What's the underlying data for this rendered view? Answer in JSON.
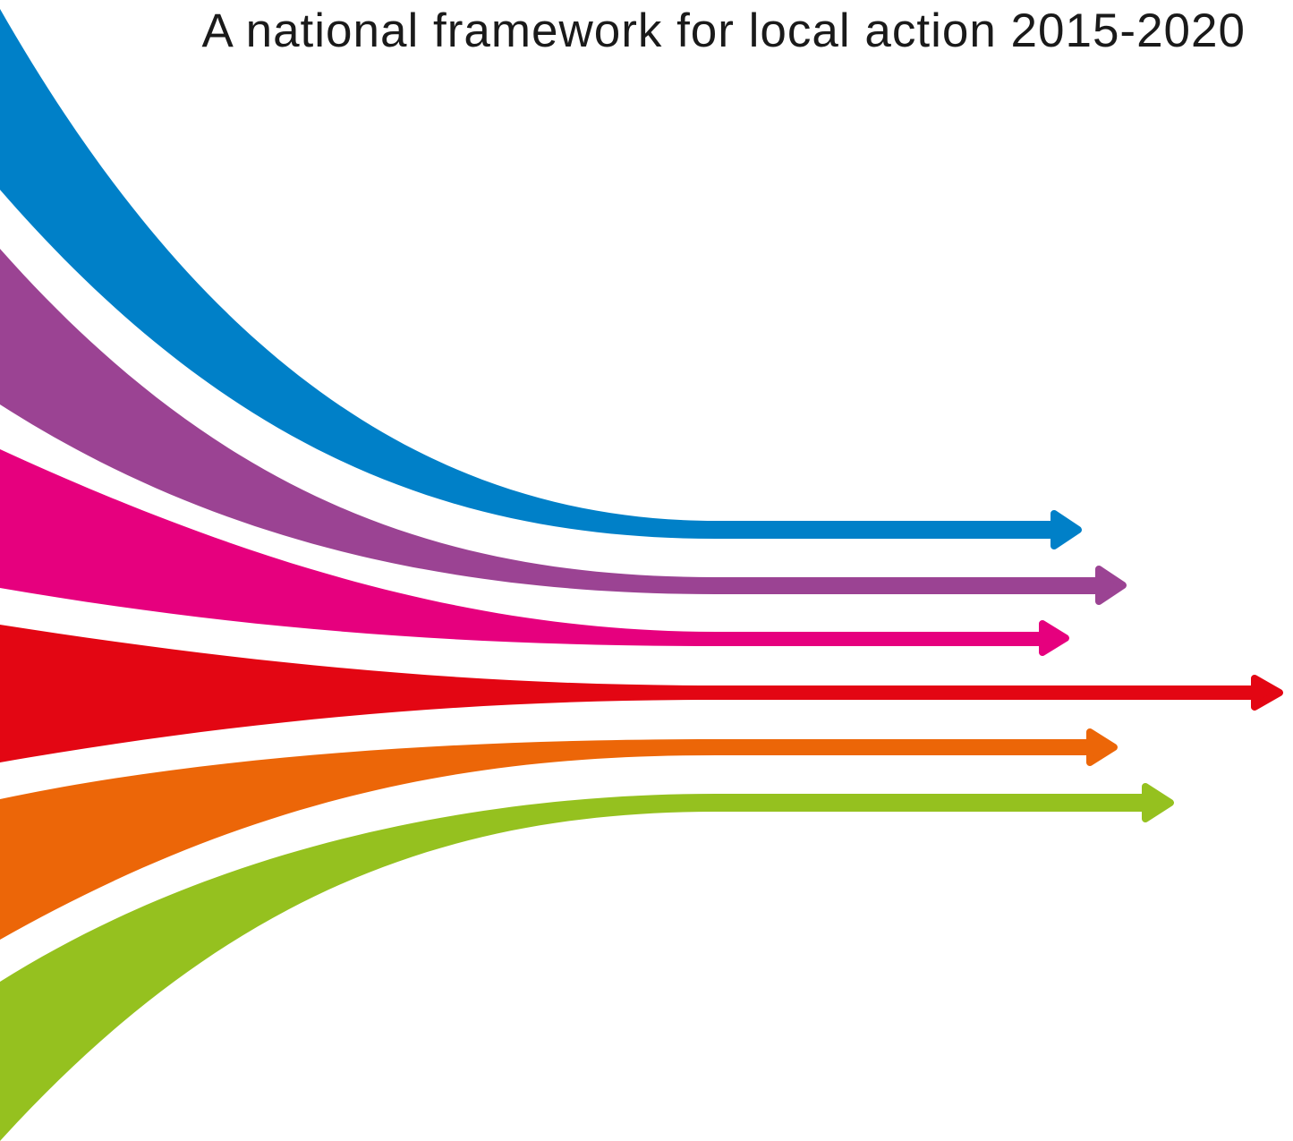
{
  "title": "A national framework for local action 2015-2020"
}
